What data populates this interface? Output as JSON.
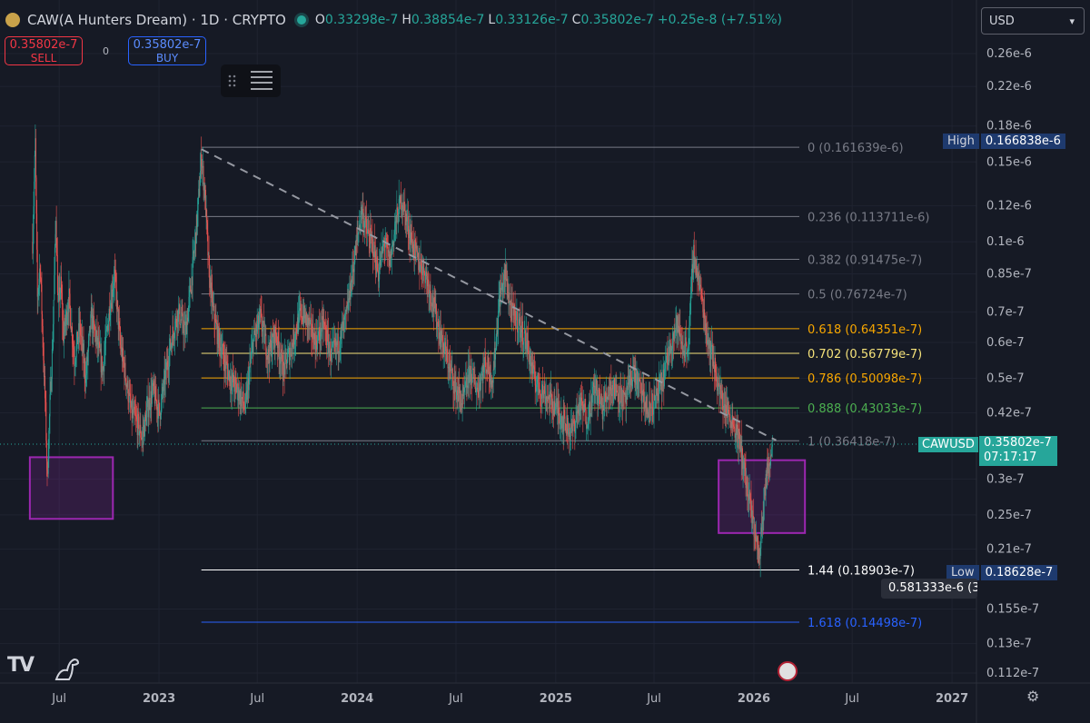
{
  "header": {
    "title": "CAW(A Hunters Dream) · 1D · CRYPTO",
    "open_label": "O",
    "open": "0.33298e-7",
    "high_label": "H",
    "high": "0.38854e-7",
    "low_label": "L",
    "low": "0.33126e-7",
    "close_label": "C",
    "close": "0.35802e-7",
    "change": "+0.25e-8 (+7.51%)"
  },
  "trade": {
    "sell_price": "0.35802e-7",
    "sell_label": "SELL",
    "spread": "0",
    "buy_price": "0.35802e-7",
    "buy_label": "BUY"
  },
  "currency": "USD",
  "colors": {
    "background": "#161a25",
    "up": "#26a69a",
    "down": "#ef5350",
    "fib_gray": "#787b86",
    "fib_orange": "#f7a600",
    "fib_yellow": "#f5e27a",
    "fib_green": "#4caf50",
    "fib_white": "#ffffff",
    "fib_blue": "#2962ff",
    "box": "#9c27b0",
    "label_navy": "#1e3a6e",
    "price_tag": "#26a69a"
  },
  "icons": [
    "logo-icon",
    "live-dot-icon",
    "drag-handle-icon",
    "menu-lines-icon",
    "tradingview-logo-icon",
    "dino-icon",
    "us-flag-icon",
    "settings-gear-icon",
    "chevron-down-icon"
  ],
  "chart_data": {
    "type": "candlestick",
    "symbol": "CAWUSD",
    "timeframe": "1D",
    "y_scale": "log",
    "y_axis_ticks": [
      "0.26e-6",
      "0.22e-6",
      "0.18e-6",
      "0.15e-6",
      "0.12e-6",
      "0.1e-6",
      "0.85e-7",
      "0.7e-7",
      "0.6e-7",
      "0.5e-7",
      "0.42e-7",
      "0.3e-7",
      "0.25e-7",
      "0.21e-7",
      "0.155e-7",
      "0.13e-7",
      "0.112e-7"
    ],
    "y_axis_tick_values": [
      2.6e-07,
      2.2e-07,
      1.8e-07,
      1.5e-07,
      1.2e-07,
      1e-07,
      8.5e-08,
      7e-08,
      6e-08,
      5e-08,
      4.2e-08,
      3e-08,
      2.5e-08,
      2.1e-08,
      1.55e-08,
      1.3e-08,
      1.12e-08
    ],
    "x_axis_ticks": [
      "Jul",
      "2023",
      "Jul",
      "2024",
      "Jul",
      "2025",
      "Jul",
      "2026",
      "Jul",
      "2027"
    ],
    "x_axis_tick_dates": [
      "2022-07-01",
      "2023-01-01",
      "2023-07-01",
      "2024-01-01",
      "2024-07-01",
      "2025-01-01",
      "2025-07-01",
      "2026-01-01",
      "2026-07-01",
      "2027-01-01"
    ],
    "x_range": [
      "2022-03-14",
      "2027-02-15"
    ],
    "year_ticks_bold": [
      "2023",
      "2024",
      "2025",
      "2026",
      "2027"
    ],
    "grid": true,
    "price_path": [
      [
        "2022-05-13",
        1e-07
      ],
      [
        "2022-05-18",
        1.65e-07
      ],
      [
        "2022-05-22",
        7.5e-08
      ],
      [
        "2022-05-27",
        9e-08
      ],
      [
        "2022-06-01",
        6e-08
      ],
      [
        "2022-06-06",
        4.2e-08
      ],
      [
        "2022-06-09",
        3e-08
      ],
      [
        "2022-06-14",
        4.4e-08
      ],
      [
        "2022-06-19",
        6e-08
      ],
      [
        "2022-06-25",
        1.15e-07
      ],
      [
        "2022-06-29",
        7.2e-08
      ],
      [
        "2022-07-04",
        8e-08
      ],
      [
        "2022-07-09",
        6.2e-08
      ],
      [
        "2022-07-19",
        7.5e-08
      ],
      [
        "2022-07-29",
        5.5e-08
      ],
      [
        "2022-08-08",
        6.5e-08
      ],
      [
        "2022-08-19",
        5e-08
      ],
      [
        "2022-08-29",
        6.8e-08
      ],
      [
        "2022-09-09",
        6e-08
      ],
      [
        "2022-09-19",
        5.2e-08
      ],
      [
        "2022-10-01",
        7e-08
      ],
      [
        "2022-10-11",
        8.5e-08
      ],
      [
        "2022-10-21",
        6e-08
      ],
      [
        "2022-11-01",
        5e-08
      ],
      [
        "2022-11-11",
        4.2e-08
      ],
      [
        "2022-11-21",
        4e-08
      ],
      [
        "2022-12-01",
        3.7e-08
      ],
      [
        "2022-12-11",
        4.3e-08
      ],
      [
        "2022-12-21",
        4.7e-08
      ],
      [
        "2023-01-02",
        4.2e-08
      ],
      [
        "2023-01-12",
        5e-08
      ],
      [
        "2023-01-25",
        6.2e-08
      ],
      [
        "2023-02-05",
        7e-08
      ],
      [
        "2023-02-19",
        6.3e-08
      ],
      [
        "2023-03-03",
        8.5e-08
      ],
      [
        "2023-03-13",
        1.15e-07
      ],
      [
        "2023-03-20",
        1.55e-07
      ],
      [
        "2023-03-27",
        1.25e-07
      ],
      [
        "2023-04-03",
        8.5e-08
      ],
      [
        "2023-04-11",
        7e-08
      ],
      [
        "2023-04-18",
        6.3e-08
      ],
      [
        "2023-05-01",
        5.5e-08
      ],
      [
        "2023-05-12",
        5e-08
      ],
      [
        "2023-05-26",
        4.7e-08
      ],
      [
        "2023-06-09",
        4.3e-08
      ],
      [
        "2023-06-23",
        6e-08
      ],
      [
        "2023-07-07",
        6.8e-08
      ],
      [
        "2023-07-21",
        5.6e-08
      ],
      [
        "2023-08-04",
        6.3e-08
      ],
      [
        "2023-08-18",
        5.2e-08
      ],
      [
        "2023-09-01",
        5.8e-08
      ],
      [
        "2023-09-19",
        7e-08
      ],
      [
        "2023-10-03",
        6.6e-08
      ],
      [
        "2023-10-17",
        6e-08
      ],
      [
        "2023-10-31",
        6.6e-08
      ],
      [
        "2023-11-14",
        5.6e-08
      ],
      [
        "2023-11-28",
        6e-08
      ],
      [
        "2023-12-12",
        6.8e-08
      ],
      [
        "2023-12-26",
        9e-08
      ],
      [
        "2024-01-09",
        1.18e-07
      ],
      [
        "2024-01-19",
        1.05e-07
      ],
      [
        "2024-01-30",
        9.8e-08
      ],
      [
        "2024-02-09",
        8.5e-08
      ],
      [
        "2024-02-20",
        1e-07
      ],
      [
        "2024-03-01",
        9e-08
      ],
      [
        "2024-03-12",
        1.1e-07
      ],
      [
        "2024-03-23",
        1.25e-07
      ],
      [
        "2024-04-02",
        1.1e-07
      ],
      [
        "2024-04-13",
        9.8e-08
      ],
      [
        "2024-04-23",
        9e-08
      ],
      [
        "2024-05-04",
        8.7e-08
      ],
      [
        "2024-05-18",
        7.5e-08
      ],
      [
        "2024-06-01",
        6.3e-08
      ],
      [
        "2024-06-15",
        5.5e-08
      ],
      [
        "2024-06-29",
        4.8e-08
      ],
      [
        "2024-07-13",
        4.4e-08
      ],
      [
        "2024-07-27",
        5.2e-08
      ],
      [
        "2024-08-10",
        4.7e-08
      ],
      [
        "2024-08-24",
        5.4e-08
      ],
      [
        "2024-09-07",
        5e-08
      ],
      [
        "2024-09-19",
        7.5e-08
      ],
      [
        "2024-09-30",
        8.5e-08
      ],
      [
        "2024-10-11",
        7e-08
      ],
      [
        "2024-10-25",
        6.6e-08
      ],
      [
        "2024-11-08",
        6e-08
      ],
      [
        "2024-11-22",
        5e-08
      ],
      [
        "2024-12-06",
        4.7e-08
      ],
      [
        "2024-12-20",
        4.5e-08
      ],
      [
        "2025-01-03",
        4.3e-08
      ],
      [
        "2025-01-17",
        4e-08
      ],
      [
        "2025-01-31",
        3.8e-08
      ],
      [
        "2025-02-14",
        4.4e-08
      ],
      [
        "2025-02-28",
        4.1e-08
      ],
      [
        "2025-03-14",
        4.8e-08
      ],
      [
        "2025-03-28",
        4.3e-08
      ],
      [
        "2025-04-11",
        4.8e-08
      ],
      [
        "2025-04-25",
        4.7e-08
      ],
      [
        "2025-05-09",
        4.4e-08
      ],
      [
        "2025-05-23",
        5.2e-08
      ],
      [
        "2025-06-06",
        4.7e-08
      ],
      [
        "2025-06-20",
        4.2e-08
      ],
      [
        "2025-07-04",
        4.5e-08
      ],
      [
        "2025-07-18",
        5e-08
      ],
      [
        "2025-08-01",
        6e-08
      ],
      [
        "2025-08-12",
        6.6e-08
      ],
      [
        "2025-08-23",
        5.8e-08
      ],
      [
        "2025-09-03",
        6e-08
      ],
      [
        "2025-09-11",
        9.5e-08
      ],
      [
        "2025-09-19",
        8.5e-08
      ],
      [
        "2025-09-27",
        7.5e-08
      ],
      [
        "2025-10-07",
        6.2e-08
      ],
      [
        "2025-10-18",
        5.5e-08
      ],
      [
        "2025-10-29",
        4.7e-08
      ],
      [
        "2025-11-09",
        4.3e-08
      ],
      [
        "2025-11-20",
        4.1e-08
      ],
      [
        "2025-12-01",
        3.8e-08
      ],
      [
        "2025-12-12",
        3.3e-08
      ],
      [
        "2025-12-20",
        2.8e-08
      ],
      [
        "2025-12-28",
        2.5e-08
      ],
      [
        "2026-01-05",
        2.2e-08
      ],
      [
        "2026-01-11",
        2e-08
      ],
      [
        "2026-01-16",
        2.4e-08
      ],
      [
        "2026-01-22",
        2.9e-08
      ],
      [
        "2026-01-29",
        3.3e-08
      ],
      [
        "2026-02-04",
        3.5802e-08
      ]
    ],
    "last_price": "0.35802e-7",
    "countdown": "07:17:17",
    "high_label": "High",
    "high_value": "0.166838e-6",
    "high_numeric": 1.66838e-07,
    "low_label": "Low",
    "low_value": "0.18628e-7",
    "low_numeric": 1.8628e-08,
    "crosshair_value": "0.581333e-6 (3",
    "fib_levels": [
      {
        "label": "0 (0.161639e-6)",
        "price": 1.61639e-07,
        "color": "#787b86"
      },
      {
        "label": "0.236 (0.113711e-6)",
        "price": 1.13711e-07,
        "color": "#787b86"
      },
      {
        "label": "0.382 (0.91475e-7)",
        "price": 9.1475e-08,
        "color": "#787b86"
      },
      {
        "label": "0.5 (0.76724e-7)",
        "price": 7.6724e-08,
        "color": "#787b86"
      },
      {
        "label": "0.618 (0.64351e-7)",
        "price": 6.4351e-08,
        "color": "#f7a600"
      },
      {
        "label": "0.702 (0.56779e-7)",
        "price": 5.6779e-08,
        "color": "#f5e27a"
      },
      {
        "label": "0.786 (0.50098e-7)",
        "price": 5.0098e-08,
        "color": "#f7a600"
      },
      {
        "label": "0.888 (0.43033e-7)",
        "price": 4.3033e-08,
        "color": "#4caf50"
      },
      {
        "label": "1 (0.36418e-7)",
        "price": 3.6418e-08,
        "color": "#787b86"
      },
      {
        "label": "1.44 (0.18903e-7)",
        "price": 1.8903e-08,
        "color": "#ffffff"
      },
      {
        "label": "1.618 (0.14498e-7)",
        "price": 1.4498e-08,
        "color": "#2962ff"
      }
    ],
    "fib_start": "2023-03-20",
    "trendline": {
      "from": [
        "2023-03-20",
        1.6e-07
      ],
      "to": [
        "2026-02-11",
        3.65e-08
      ]
    },
    "boxes": [
      {
        "from": [
          "2022-05-08",
          3.35e-08
        ],
        "to": [
          "2022-10-08",
          2.45e-08
        ]
      },
      {
        "from": [
          "2025-10-28",
          3.3e-08
        ],
        "to": [
          "2026-04-05",
          2.28e-08
        ]
      }
    ]
  }
}
